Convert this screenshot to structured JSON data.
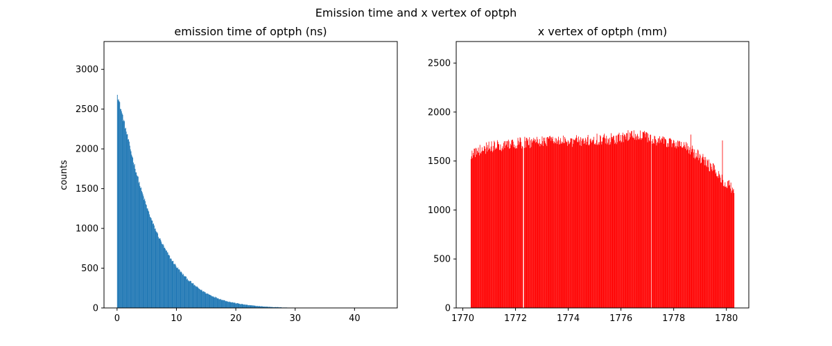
{
  "figure": {
    "suptitle": "Emission time and x vertex of optph"
  },
  "chart_data": [
    {
      "type": "histogram",
      "title": "emission time of optph (ns)",
      "xlabel": "",
      "ylabel": "counts",
      "xlim": [
        -2.2,
        47.2
      ],
      "ylim": [
        0,
        3350
      ],
      "xticks": [
        0,
        10,
        20,
        30,
        40
      ],
      "yticks": [
        0,
        500,
        1000,
        1500,
        2000,
        2500,
        3000
      ],
      "color": "#1f77b4",
      "bins": {
        "start": 0.0,
        "bin_width": 0.1,
        "count": 450
      },
      "shape": {
        "peak": 2680,
        "decay_ns": 2.55,
        "decay_profile": [
          2680,
          2380,
          2060,
          1760,
          1490,
          1260,
          1060,
          890,
          745,
          620,
          515,
          425,
          350,
          285,
          230,
          185,
          150,
          120,
          95,
          75,
          60,
          47,
          36,
          28,
          21,
          16,
          12,
          9,
          6,
          4,
          3,
          2,
          1,
          1,
          0,
          0,
          0,
          0,
          0,
          0,
          0,
          0,
          0,
          0,
          0
        ]
      }
    },
    {
      "type": "histogram",
      "title": "x vertex of optph (mm)",
      "xlabel": "",
      "ylabel": "",
      "xlim": [
        1769.75,
        1780.85
      ],
      "ylim": [
        0,
        2720
      ],
      "xticks": [
        1770,
        1772,
        1774,
        1776,
        1778,
        1780
      ],
      "yticks": [
        0,
        500,
        1000,
        1500,
        2000,
        2500
      ],
      "color": "#ff0000",
      "bins": {
        "start": 1770.3,
        "bin_width": 0.02,
        "count": 500
      },
      "profile_x": [
        1770.3,
        1771.0,
        1772.0,
        1773.0,
        1774.0,
        1775.0,
        1776.0,
        1776.5,
        1777.0,
        1777.5,
        1778.0,
        1778.5,
        1779.0,
        1779.5,
        1780.0,
        1780.3
      ],
      "profile_y": [
        1580,
        1640,
        1680,
        1700,
        1700,
        1720,
        1730,
        1780,
        1740,
        1700,
        1690,
        1640,
        1540,
        1420,
        1270,
        1200
      ],
      "gaps_at": [
        1772.3,
        1777.15
      ],
      "spikes": [
        {
          "x": 1779.85,
          "y": 1710
        },
        {
          "x": 1778.65,
          "y": 1770
        }
      ]
    }
  ]
}
